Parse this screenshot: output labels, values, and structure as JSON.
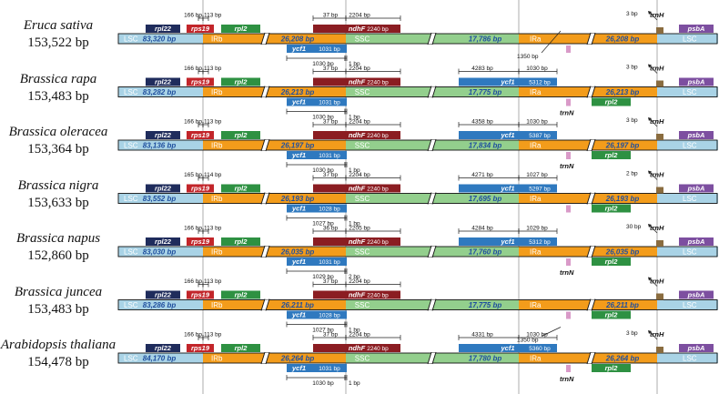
{
  "colors": {
    "lsc": "#a9d3e6",
    "ir": "#f39c1b",
    "ssc": "#93cf8d",
    "gene_darkblue": "#1f2c5c",
    "gene_red": "#c2252a",
    "gene_green": "#2e9142",
    "gene_blue": "#2f79bf",
    "gene_darkred": "#8b1d22",
    "gene_purple": "#7d4fa0",
    "gene_brown": "#8a6c3f",
    "gene_pink": "#d99ac8"
  },
  "region_labels": {
    "lsc": "LSC",
    "irb": "IRb",
    "ssc": "SSC",
    "ira": "IRa"
  },
  "gene_names": {
    "rpl22": "rpl22",
    "rps19": "rps19",
    "rpl2": "rpl2",
    "ndhF": "ndhF",
    "ycf1": "ycf1",
    "trnH": "trnH",
    "psbA": "psbA",
    "trnN": "trnN"
  },
  "species": [
    {
      "name": "Eruca sativa",
      "length": "153,522 bp",
      "lsc": "83,320 bp",
      "irb": "26,208 bp",
      "ssc": "17,786 bp",
      "ira": "26,208 bp",
      "rps19_left": "166 bp",
      "rps19_right": "113 bp",
      "ndhF_left": "37 bp",
      "ndhF_right": "2204 bp",
      "ndhF_len": "2240 bp",
      "ycf1_irb_len": "1031 bp",
      "ycf1_irb_below_left": "1030 bp",
      "ycf1_irb_below_right": "1 bp",
      "trnH_dist": "3 bp",
      "ycf1_ira": false,
      "ycf1_ira_len": "",
      "ycf1_ira_left": "",
      "ycf1_ira_right": "",
      "below_ira": "1350 bp",
      "below_ira_position": "top",
      "trnN_label": false,
      "ira_rpl2": false
    },
    {
      "name": "Brassica rapa",
      "length": "153,483 bp",
      "lsc": "83,282 bp",
      "irb": "26,213 bp",
      "ssc": "17,775 bp",
      "ira": "26,213 bp",
      "rps19_left": "166 bp",
      "rps19_right": "113 bp",
      "ndhF_left": "37 bp",
      "ndhF_right": "2204 bp",
      "ndhF_len": "2240 bp",
      "ycf1_irb_len": "1031 bp",
      "ycf1_irb_below_left": "1030 bp",
      "ycf1_irb_below_right": "1 bp",
      "trnH_dist": "3 bp",
      "ycf1_ira": true,
      "ycf1_ira_len": "5312 bp",
      "ycf1_ira_left": "4283 bp",
      "ycf1_ira_right": "1030 bp",
      "below_ira": "",
      "below_ira_position": "",
      "trnN_label": true,
      "ira_rpl2": true
    },
    {
      "name": "Brassica oleracea",
      "length": "153,364 bp",
      "lsc": "83,136 bp",
      "irb": "26,197 bp",
      "ssc": "17,834 bp",
      "ira": "26,197 bp",
      "rps19_left": "166 bp",
      "rps19_right": "113 bp",
      "ndhF_left": "37 bp",
      "ndhF_right": "2204 bp",
      "ndhF_len": "2240 bp",
      "ycf1_irb_len": "1031 bp",
      "ycf1_irb_below_left": "1030 bp",
      "ycf1_irb_below_right": "1 bp",
      "trnH_dist": "3 bp",
      "ycf1_ira": true,
      "ycf1_ira_len": "5387 bp",
      "ycf1_ira_left": "4358 bp",
      "ycf1_ira_right": "1030 bp",
      "below_ira": "",
      "below_ira_position": "",
      "trnN_label": true,
      "ira_rpl2": true
    },
    {
      "name": "Brassica nigra",
      "length": "153,633 bp",
      "lsc": "83,552 bp",
      "irb": "26,193 bp",
      "ssc": "17,695 bp",
      "ira": "26,193 bp",
      "rps19_left": "165 bp",
      "rps19_right": "114 bp",
      "ndhF_left": "37 bp",
      "ndhF_right": "2204 bp",
      "ndhF_len": "2240 bp",
      "ycf1_irb_len": "1028 bp",
      "ycf1_irb_below_left": "1027 bp",
      "ycf1_irb_below_right": "1 bp",
      "trnH_dist": "2 bp",
      "ycf1_ira": true,
      "ycf1_ira_len": "5297 bp",
      "ycf1_ira_left": "4271 bp",
      "ycf1_ira_right": "1027 bp",
      "below_ira": "",
      "below_ira_position": "",
      "trnN_label": false,
      "ira_rpl2": true
    },
    {
      "name": "Brassica napus",
      "length": "152,860 bp",
      "lsc": "83,030 bp",
      "irb": "26,035 bp",
      "ssc": "17,760 bp",
      "ira": "26,035 bp",
      "rps19_left": "166 bp",
      "rps19_right": "113 bp",
      "ndhF_left": "36 bp",
      "ndhF_right": "2205 bp",
      "ndhF_len": "2240 bp",
      "ycf1_irb_len": "1031 bp",
      "ycf1_irb_below_left": "1029 bp",
      "ycf1_irb_below_right": "2 bp",
      "trnH_dist": "30 bp",
      "ycf1_ira": true,
      "ycf1_ira_len": "5312 bp",
      "ycf1_ira_left": "4284 bp",
      "ycf1_ira_right": "1029 bp",
      "below_ira": "",
      "below_ira_position": "",
      "trnN_label": true,
      "ira_rpl2": true
    },
    {
      "name": "Brassica juncea",
      "length": "153,483 bp",
      "lsc": "83,286 bp",
      "irb": "26,211 bp",
      "ssc": "17,775 bp",
      "ira": "26,211 bp",
      "rps19_left": "166 bp",
      "rps19_right": "113 bp",
      "ndhF_left": "37 bp",
      "ndhF_right": "2204 bp",
      "ndhF_len": "2240 bp",
      "ycf1_irb_len": "1028 bp",
      "ycf1_irb_below_left": "1027 bp",
      "ycf1_irb_below_right": "1 bp",
      "trnH_dist": "",
      "ycf1_ira": false,
      "ycf1_ira_len": "",
      "ycf1_ira_left": "",
      "ycf1_ira_right": "",
      "below_ira": "1350 bp",
      "below_ira_position": "bottom",
      "trnN_label": false,
      "ira_rpl2": true
    },
    {
      "name": "Arabidopsis thaliana",
      "length": "154,478 bp",
      "lsc": "84,170 bp",
      "irb": "26,264 bp",
      "ssc": "17,780 bp",
      "ira": "26,264 bp",
      "rps19_left": "166 bp",
      "rps19_right": "113 bp",
      "ndhF_left": "37 bp",
      "ndhF_right": "2204 bp",
      "ndhF_len": "2240 bp",
      "ycf1_irb_len": "1031 bp",
      "ycf1_irb_below_left": "1030 bp",
      "ycf1_irb_below_right": "1 bp",
      "trnH_dist": "3 bp",
      "ycf1_ira": true,
      "ycf1_ira_len": "5360 bp",
      "ycf1_ira_left": "4331 bp",
      "ycf1_ira_right": "1030 bp",
      "below_ira": "",
      "below_ira_position": "",
      "trnN_label": true,
      "ira_rpl2": true
    }
  ]
}
